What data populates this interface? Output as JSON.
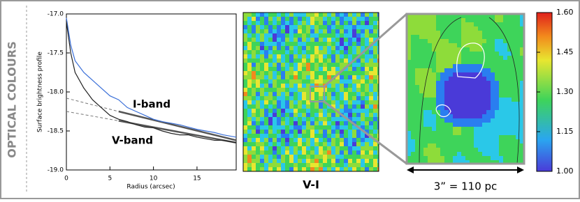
{
  "side_label": "OPTICAL COLOURS",
  "chart_data": [
    {
      "type": "line",
      "y_label": "Surface brightness profile",
      "x_label": "Radius (arcsec)",
      "x": [
        0,
        0.5,
        1,
        2,
        3,
        4,
        5,
        6,
        7,
        8,
        9,
        10,
        11,
        12,
        13,
        14,
        15,
        16,
        17,
        18,
        19.5
      ],
      "xlim": [
        0,
        19.5
      ],
      "xticks": [
        0,
        5,
        10,
        15
      ],
      "ylim": [
        -19,
        -17
      ],
      "yticks": [
        {
          "value": -19,
          "label": "-19.0"
        },
        {
          "value": -18.5,
          "label": "-18.5"
        },
        {
          "value": -18,
          "label": "-18.0"
        },
        {
          "value": -17.5,
          "label": "-17.5"
        },
        {
          "value": -17,
          "label": "-17.0"
        }
      ],
      "series": [
        {
          "name": "I-band",
          "color": "#3a6fd8",
          "values": [
            -17.05,
            -17.4,
            -17.6,
            -17.75,
            -17.85,
            -17.95,
            -18.05,
            -18.1,
            -18.2,
            -18.25,
            -18.3,
            -18.35,
            -18.38,
            -18.4,
            -18.42,
            -18.45,
            -18.48,
            -18.5,
            -18.52,
            -18.55,
            -18.58
          ]
        },
        {
          "name": "V-band",
          "color": "#222222",
          "values": [
            -17.1,
            -17.5,
            -17.75,
            -17.95,
            -18.1,
            -18.2,
            -18.3,
            -18.35,
            -18.38,
            -18.42,
            -18.45,
            -18.46,
            -18.5,
            -18.53,
            -18.55,
            -18.55,
            -18.58,
            -18.6,
            -18.62,
            -18.62,
            -18.65
          ]
        }
      ],
      "fits": [
        {
          "color": "#777777",
          "dashed": true,
          "x": [
            0,
            6
          ],
          "values": [
            -18.08,
            -18.25
          ]
        },
        {
          "color": "#555555",
          "dashed": false,
          "x": [
            6,
            19.5
          ],
          "values": [
            -18.25,
            -18.62
          ]
        },
        {
          "color": "#777777",
          "dashed": true,
          "x": [
            0,
            6
          ],
          "values": [
            -18.25,
            -18.37
          ]
        },
        {
          "color": "#555555",
          "dashed": false,
          "x": [
            6,
            19.5
          ],
          "values": [
            -18.37,
            -18.65
          ]
        }
      ]
    },
    {
      "type": "image",
      "title": "V-I"
    },
    {
      "type": "colorbar",
      "ylim": [
        1.0,
        1.6
      ],
      "yticks": [
        {
          "value": 1.0,
          "label": "1.00"
        },
        {
          "value": 1.15,
          "label": "1.15"
        },
        {
          "value": 1.3,
          "label": "1.30"
        },
        {
          "value": 1.45,
          "label": "1.45"
        },
        {
          "value": 1.6,
          "label": "1.60"
        }
      ],
      "scale_label": "3” = 110 pc"
    }
  ]
}
